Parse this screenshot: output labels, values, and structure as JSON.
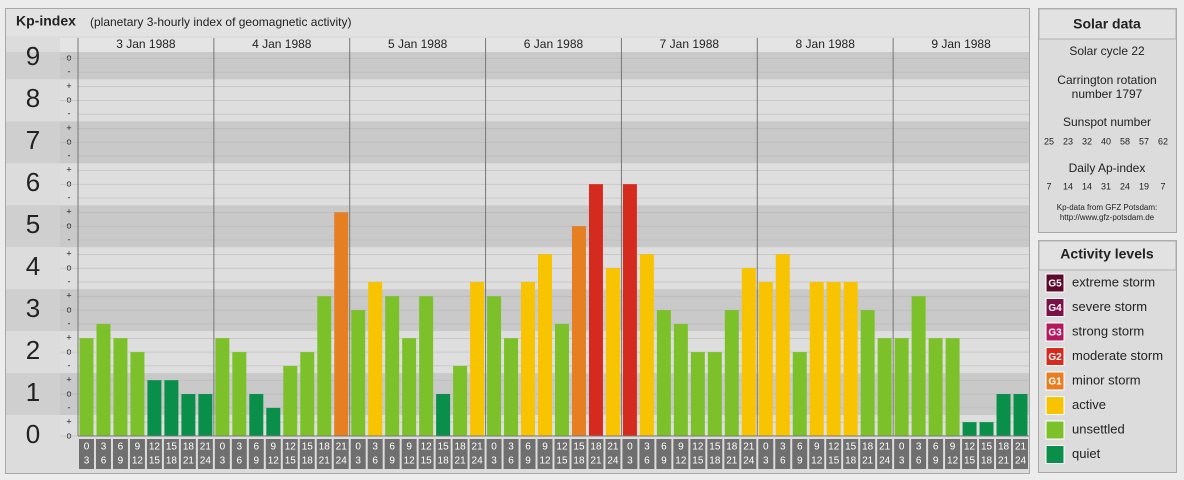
{
  "chart_data": {
    "type": "bar",
    "title": "Kp-index",
    "subtitle": "(planetary 3-hourly index of geomagnetic activity)",
    "days": [
      "3 Jan 1988",
      "4 Jan 1988",
      "5 Jan 1988",
      "6 Jan 1988",
      "7 Jan 1988",
      "8 Jan 1988",
      "9 Jan 1988"
    ],
    "hours": [
      0,
      3,
      6,
      9,
      12,
      15,
      18,
      21,
      24
    ],
    "values": [
      2.33,
      2.67,
      2.33,
      2,
      1.33,
      1.33,
      1,
      1,
      2.33,
      2,
      1,
      0.67,
      1.67,
      2,
      3.33,
      5.33,
      3,
      3.67,
      3.33,
      2.33,
      3.33,
      1,
      1.67,
      3.67,
      3.33,
      2.33,
      3.67,
      4.33,
      2.67,
      5,
      6,
      4,
      6,
      4.33,
      3,
      2.67,
      2,
      2,
      3,
      4,
      3.67,
      4.33,
      2,
      3.67,
      3.67,
      3.67,
      3,
      2.33,
      2.33,
      3.33,
      2.33,
      2.33,
      0.33,
      0.33,
      1,
      1
    ],
    "colors": [
      "#7dc12a",
      "#7dc12a",
      "#7dc12a",
      "#7dc12a",
      "#0a8f4a",
      "#0a8f4a",
      "#0a8f4a",
      "#0a8f4a",
      "#7dc12a",
      "#7dc12a",
      "#0a8f4a",
      "#0a8f4a",
      "#7dc12a",
      "#7dc12a",
      "#7dc12a",
      "#e67e22",
      "#7dc12a",
      "#f8c300",
      "#7dc12a",
      "#7dc12a",
      "#7dc12a",
      "#0a8f4a",
      "#7dc12a",
      "#f8c300",
      "#7dc12a",
      "#7dc12a",
      "#f8c300",
      "#f8c300",
      "#7dc12a",
      "#e67e22",
      "#d42b1e",
      "#f8c300",
      "#d42b1e",
      "#f8c300",
      "#7dc12a",
      "#7dc12a",
      "#7dc12a",
      "#7dc12a",
      "#7dc12a",
      "#f8c300",
      "#f8c300",
      "#f8c300",
      "#7dc12a",
      "#f8c300",
      "#f8c300",
      "#f8c300",
      "#7dc12a",
      "#7dc12a",
      "#7dc12a",
      "#7dc12a",
      "#7dc12a",
      "#7dc12a",
      "#0a8f4a",
      "#0a8f4a",
      "#0a8f4a",
      "#0a8f4a"
    ],
    "ylim": [
      0,
      9.15
    ],
    "yticks": [
      0,
      1,
      2,
      3,
      4,
      5,
      6,
      7,
      8,
      9
    ],
    "yminorticks": [
      {
        "value": 0,
        "label": "o"
      },
      {
        "value": 0.33,
        "label": "+"
      },
      {
        "value": 0.67,
        "label": "-"
      },
      {
        "value": 1,
        "label": "o"
      },
      {
        "value": 1.33,
        "label": "+"
      },
      {
        "value": 1.67,
        "label": "-"
      },
      {
        "value": 2,
        "label": "o"
      },
      {
        "value": 2.33,
        "label": "+"
      },
      {
        "value": 2.67,
        "label": "-"
      },
      {
        "value": 3,
        "label": "o"
      },
      {
        "value": 3.33,
        "label": "+"
      },
      {
        "value": 3.67,
        "label": "-"
      },
      {
        "value": 4,
        "label": "o"
      },
      {
        "value": 4.33,
        "label": "+"
      },
      {
        "value": 4.67,
        "label": "-"
      },
      {
        "value": 5,
        "label": "o"
      },
      {
        "value": 5.33,
        "label": "+"
      },
      {
        "value": 5.67,
        "label": "-"
      },
      {
        "value": 6,
        "label": "o"
      },
      {
        "value": 6.33,
        "label": "+"
      },
      {
        "value": 6.67,
        "label": "-"
      },
      {
        "value": 7,
        "label": "o"
      },
      {
        "value": 7.33,
        "label": "+"
      },
      {
        "value": 7.67,
        "label": "-"
      },
      {
        "value": 8,
        "label": "o"
      },
      {
        "value": 8.33,
        "label": "+"
      },
      {
        "value": 8.67,
        "label": "-"
      },
      {
        "value": 9,
        "label": "o"
      }
    ],
    "grid": true,
    "bands": true
  },
  "solar_data": {
    "title": "Solar data",
    "cycle": "Solar cycle 22",
    "carrington": [
      "Carrington rotation",
      "number 1797"
    ],
    "sunspot_title": "Sunspot number",
    "sunspot": [
      25,
      23,
      32,
      40,
      58,
      57,
      62
    ],
    "ap_title": "Daily Ap-index",
    "ap": [
      7,
      14,
      14,
      31,
      24,
      19,
      7
    ],
    "source": [
      "Kp-data from GFZ Potsdam:",
      "http://www.gfz-potsdam.de"
    ]
  },
  "activity_levels": {
    "title": "Activity levels",
    "items": [
      {
        "badge": "G5",
        "label": "extreme storm",
        "color": "#5c0a2c"
      },
      {
        "badge": "G4",
        "label": "severe storm",
        "color": "#7a1046"
      },
      {
        "badge": "G3",
        "label": "strong storm",
        "color": "#b3195e"
      },
      {
        "badge": "G2",
        "label": "moderate storm",
        "color": "#d42b1e"
      },
      {
        "badge": "G1",
        "label": "minor storm",
        "color": "#e67e22"
      },
      {
        "label": "active",
        "color": "#f8c300"
      },
      {
        "label": "unsettled",
        "color": "#7dc12a"
      },
      {
        "label": "quiet",
        "color": "#0a8f4a"
      }
    ]
  }
}
